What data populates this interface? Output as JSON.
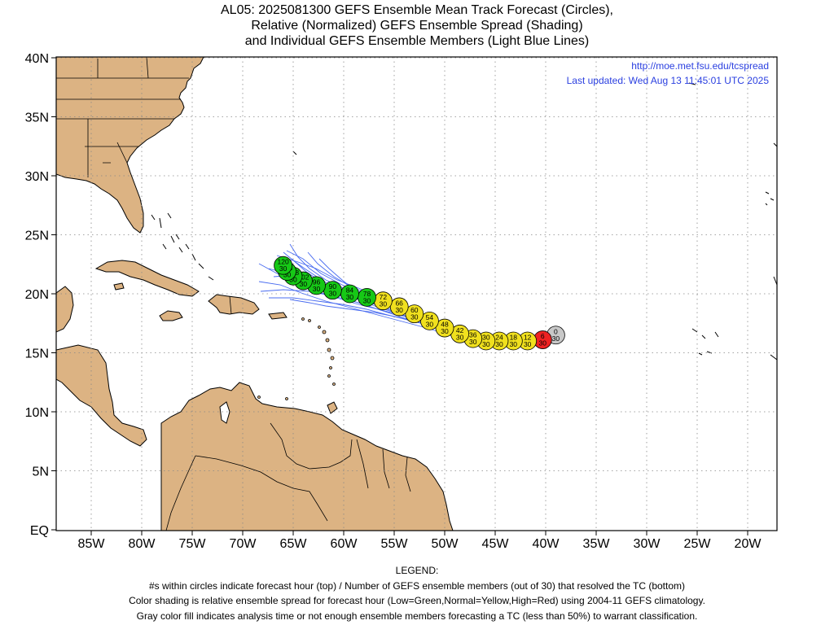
{
  "title": {
    "line1": "AL05: 2025081300 GEFS Ensemble Mean Track Forecast (Circles),",
    "line2": "Relative (Normalized) GEFS Ensemble Spread (Shading)",
    "line3": "and Individual GEFS Ensemble Members (Light Blue Lines)"
  },
  "info": {
    "url": "http://moe.met.fsu.edu/tcspread",
    "updated": "Last updated: Wed Aug 13 11:45:01 UTC 2025"
  },
  "axes": {
    "lat_labels": [
      "EQ",
      "5N",
      "10N",
      "15N",
      "20N",
      "25N",
      "30N",
      "35N",
      "40N"
    ],
    "lat_values": [
      0,
      5,
      10,
      15,
      20,
      25,
      30,
      35,
      40
    ],
    "lon_labels": [
      "85W",
      "80W",
      "75W",
      "70W",
      "65W",
      "60W",
      "55W",
      "50W",
      "45W",
      "40W",
      "35W",
      "30W",
      "25W",
      "20W"
    ],
    "lon_values": [
      -85,
      -80,
      -75,
      -70,
      -65,
      -60,
      -55,
      -50,
      -45,
      -40,
      -35,
      -30,
      -25,
      -20
    ]
  },
  "colors": {
    "land": "#dcb383",
    "ocean": "#ffffff",
    "member_lines": "#4a6cf0",
    "info_text": "#2a3fe0",
    "low_spread": "#16c816",
    "normal_spread": "#f0e01e",
    "high_spread": "#ee2222",
    "analysis": "#c8c8c8"
  },
  "track": [
    {
      "hour": "0",
      "members": "30",
      "lon": -39.0,
      "lat": 16.5,
      "spread": "analysis"
    },
    {
      "hour": "6",
      "members": "30",
      "lon": -40.3,
      "lat": 16.1,
      "spread": "high"
    },
    {
      "hour": "12",
      "members": "30",
      "lon": -41.8,
      "lat": 16.0,
      "spread": "normal"
    },
    {
      "hour": "18",
      "members": "30",
      "lon": -43.2,
      "lat": 16.0,
      "spread": "normal"
    },
    {
      "hour": "24",
      "members": "30",
      "lon": -44.6,
      "lat": 16.0,
      "spread": "normal"
    },
    {
      "hour": "30",
      "members": "30",
      "lon": -45.9,
      "lat": 16.0,
      "spread": "normal"
    },
    {
      "hour": "36",
      "members": "30",
      "lon": -47.2,
      "lat": 16.2,
      "spread": "normal"
    },
    {
      "hour": "42",
      "members": "30",
      "lon": -48.5,
      "lat": 16.6,
      "spread": "normal"
    },
    {
      "hour": "48",
      "members": "30",
      "lon": -50.0,
      "lat": 17.1,
      "spread": "normal"
    },
    {
      "hour": "54",
      "members": "30",
      "lon": -51.5,
      "lat": 17.7,
      "spread": "normal"
    },
    {
      "hour": "60",
      "members": "30",
      "lon": -53.0,
      "lat": 18.3,
      "spread": "normal"
    },
    {
      "hour": "66",
      "members": "30",
      "lon": -54.5,
      "lat": 18.9,
      "spread": "normal"
    },
    {
      "hour": "72",
      "members": "30",
      "lon": -56.1,
      "lat": 19.4,
      "spread": "normal"
    },
    {
      "hour": "78",
      "members": "30",
      "lon": -57.7,
      "lat": 19.7,
      "spread": "low"
    },
    {
      "hour": "84",
      "members": "30",
      "lon": -59.4,
      "lat": 20.0,
      "spread": "low"
    },
    {
      "hour": "90",
      "members": "30",
      "lon": -61.1,
      "lat": 20.3,
      "spread": "low"
    },
    {
      "hour": "96",
      "members": "30",
      "lon": -62.7,
      "lat": 20.7,
      "spread": "low"
    },
    {
      "hour": "102",
      "members": "30",
      "lon": -64.0,
      "lat": 21.1,
      "spread": "low"
    },
    {
      "hour": "108",
      "members": "30",
      "lon": -65.0,
      "lat": 21.5,
      "spread": "low"
    },
    {
      "hour": "114",
      "members": "30",
      "lon": -65.6,
      "lat": 21.9,
      "spread": "low"
    },
    {
      "hour": "120",
      "members": "30",
      "lon": -66.0,
      "lat": 22.4,
      "spread": "low"
    }
  ],
  "legend": {
    "heading": "LEGEND:",
    "line1": "#s within circles indicate forecast hour (top) / Number of GEFS ensemble members (out of 30) that resolved the TC (bottom)",
    "line2": "Color shading is relative ensemble spread for forecast hour (Low=Green,Normal=Yellow,High=Red) using 2004-11 GEFS climatology.",
    "line3": "Gray color fill indicates analysis time or not enough ensemble members forecasting a TC (less than 50%) to warrant classification."
  }
}
